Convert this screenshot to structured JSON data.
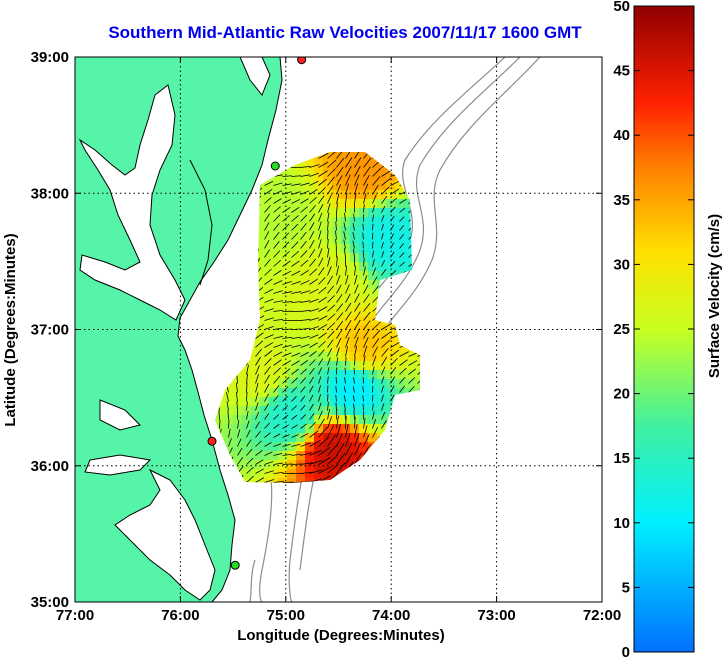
{
  "title": "Southern Mid-Atlantic Raw Velocities 2007/11/17 1600 GMT",
  "x_axis": {
    "label": "Longitude (Degrees:Minutes)",
    "ticks": [
      "77:00",
      "76:00",
      "75:00",
      "74:00",
      "73:00",
      "72:00"
    ],
    "range": [
      -77,
      -72
    ]
  },
  "y_axis": {
    "label": "Latitude (Degrees:Minutes)",
    "ticks": [
      "39:00",
      "38:00",
      "37:00",
      "36:00",
      "35:00"
    ],
    "range": [
      35,
      39
    ]
  },
  "colorbar": {
    "label": "Surface Velocity (cm/s)",
    "ticks": [
      "50",
      "45",
      "40",
      "35",
      "30",
      "25",
      "20",
      "15",
      "10",
      "5",
      "0"
    ],
    "range": [
      0,
      50
    ]
  },
  "colors": {
    "land": "#55f4a8",
    "coastline": "#000000",
    "bathymetry": "#8c8c8c",
    "site_green": "#22e022",
    "site_red": "#ff2020",
    "title": "#0000ee"
  },
  "chart_data": {
    "type": "heatmap",
    "grid": true,
    "description_fields": "velocity field over ocean, values in cm/s",
    "radar_sites": [
      {
        "lon": -74.85,
        "lat": 38.98,
        "status": "red"
      },
      {
        "lon": -75.1,
        "lat": 38.2,
        "status": "green"
      },
      {
        "lon": -75.7,
        "lat": 36.18,
        "status": "red"
      },
      {
        "lon": -75.48,
        "lat": 35.27,
        "status": "green"
      }
    ],
    "speed_regions": [
      {
        "lon": -75.1,
        "lat": 37.9,
        "speed": 24
      },
      {
        "lon": -74.6,
        "lat": 37.4,
        "speed": 27
      },
      {
        "lon": -74.1,
        "lat": 37.7,
        "speed": 12
      },
      {
        "lon": -74.3,
        "lat": 36.9,
        "speed": 33
      },
      {
        "lon": -74.4,
        "lat": 36.6,
        "speed": 10
      },
      {
        "lon": -75.3,
        "lat": 36.7,
        "speed": 27
      },
      {
        "lon": -74.6,
        "lat": 36.15,
        "speed": 46
      },
      {
        "lon": -75.0,
        "lat": 36.4,
        "speed": 14
      },
      {
        "lon": -74.3,
        "lat": 38.2,
        "speed": 36
      }
    ]
  }
}
